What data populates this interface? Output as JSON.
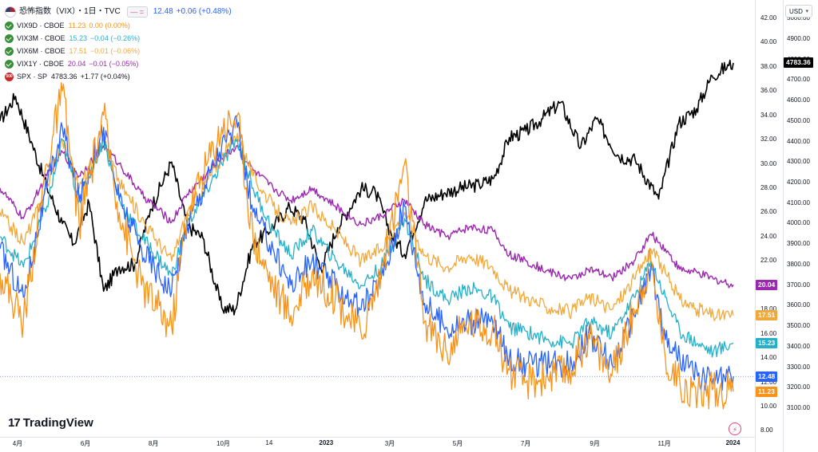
{
  "header": {
    "title": "恐怖指数（VIX）・1日・TVC",
    "main_value": "12.48",
    "main_change": "+0.06 (+0.48%)",
    "main_color": "#2962ff"
  },
  "legend": [
    {
      "name": "VIX9D · CBOE",
      "value": "11.23",
      "change": "0.00 (0.00%)",
      "color": "#f7931a"
    },
    {
      "name": "VIX3M · CBOE",
      "value": "15.23",
      "change": "−0.04 (−0.26%)",
      "color": "#26b0c8"
    },
    {
      "name": "VIX6M · CBOE",
      "value": "17.51",
      "change": "−0.01 (−0.06%)",
      "color": "#f2a93b"
    },
    {
      "name": "VIX1Y · CBOE",
      "value": "20.04",
      "change": "−0.01 (−0.05%)",
      "color": "#9c27b0"
    },
    {
      "name": "SPX · SP",
      "value": "4783.36",
      "change": "+1.77 (+0.04%)",
      "color": "#000000"
    }
  ],
  "currency": "USD",
  "logo_text": "TradingView",
  "spx_icon_text": "500",
  "chart_data": {
    "type": "line",
    "x_labels": [
      "4月",
      "6月",
      "8月",
      "10月",
      "14",
      "2023",
      "3月",
      "5月",
      "7月",
      "9月",
      "11月",
      "2024"
    ],
    "x_range": [
      "2022-03-15",
      "2024-01-02"
    ],
    "left_axis_ticks": [
      8,
      10,
      12,
      14,
      16,
      18,
      20,
      22,
      24,
      26,
      28,
      30,
      32,
      34,
      36,
      38,
      40,
      42
    ],
    "right_axis_ticks": [
      3100,
      3200,
      3300,
      3400,
      3500,
      3600,
      3700,
      3800,
      3900,
      4000,
      4100,
      4200,
      4300,
      4400,
      4500,
      4600,
      4700,
      4800,
      4900,
      5000
    ],
    "ylim_left": [
      7.5,
      43.5
    ],
    "ylim_right": [
      2960,
      5090
    ],
    "tags": [
      {
        "label": "4783.36",
        "bg": "#000000",
        "fg": "#ffffff",
        "axis": "right",
        "value": 4783.36
      },
      {
        "label": "20.04",
        "bg": "#9c27b0",
        "fg": "#ffffff",
        "axis": "left",
        "value": 20.04
      },
      {
        "label": "17.51",
        "bg": "#f2a93b",
        "fg": "#ffffff",
        "axis": "left",
        "value": 17.51
      },
      {
        "label": "15.23",
        "bg": "#26b0c8",
        "fg": "#ffffff",
        "axis": "left",
        "value": 15.23
      },
      {
        "label": "12.48",
        "bg": "#2962ff",
        "fg": "#ffffff",
        "axis": "left",
        "value": 12.48
      },
      {
        "label": "11.23",
        "bg": "#f7931a",
        "fg": "#ffffff",
        "axis": "left",
        "value": 11.23
      }
    ],
    "series": [
      {
        "name": "SPX · SP",
        "axis": "right",
        "color": "#000000",
        "width": 1.6,
        "points": [
          [
            "2022-03-15",
            4500
          ],
          [
            "2022-03-29",
            4620
          ],
          [
            "2022-04-12",
            4400
          ],
          [
            "2022-04-26",
            4180
          ],
          [
            "2022-05-10",
            4000
          ],
          [
            "2022-05-20",
            3900
          ],
          [
            "2022-06-03",
            4100
          ],
          [
            "2022-06-16",
            3670
          ],
          [
            "2022-06-30",
            3790
          ],
          [
            "2022-07-14",
            3800
          ],
          [
            "2022-07-28",
            4070
          ],
          [
            "2022-08-16",
            4300
          ],
          [
            "2022-08-30",
            3990
          ],
          [
            "2022-09-13",
            3930
          ],
          [
            "2022-09-30",
            3590
          ],
          [
            "2022-10-12",
            3580
          ],
          [
            "2022-10-28",
            3900
          ],
          [
            "2022-11-10",
            3960
          ],
          [
            "2022-11-30",
            4080
          ],
          [
            "2022-12-13",
            4020
          ],
          [
            "2022-12-28",
            3780
          ],
          [
            "2023-01-12",
            3980
          ],
          [
            "2023-02-02",
            4170
          ],
          [
            "2023-02-15",
            4150
          ],
          [
            "2023-03-01",
            3950
          ],
          [
            "2023-03-13",
            3850
          ],
          [
            "2023-03-31",
            4110
          ],
          [
            "2023-04-18",
            4150
          ],
          [
            "2023-05-01",
            4170
          ],
          [
            "2023-05-19",
            4190
          ],
          [
            "2023-06-01",
            4220
          ],
          [
            "2023-06-15",
            4420
          ],
          [
            "2023-06-30",
            4450
          ],
          [
            "2023-07-14",
            4510
          ],
          [
            "2023-07-31",
            4590
          ],
          [
            "2023-08-18",
            4370
          ],
          [
            "2023-09-01",
            4510
          ],
          [
            "2023-09-21",
            4330
          ],
          [
            "2023-10-06",
            4310
          ],
          [
            "2023-10-27",
            4120
          ],
          [
            "2023-11-14",
            4490
          ],
          [
            "2023-11-30",
            4560
          ],
          [
            "2023-12-14",
            4720
          ],
          [
            "2023-12-29",
            4770
          ],
          [
            "2024-01-02",
            4783.36
          ]
        ]
      },
      {
        "name": "VIX1Y · CBOE",
        "axis": "left",
        "color": "#9c27b0",
        "width": 1.4,
        "points": [
          [
            "2022-03-15",
            28
          ],
          [
            "2022-04-05",
            25.5
          ],
          [
            "2022-04-26",
            29
          ],
          [
            "2022-05-10",
            31
          ],
          [
            "2022-05-25",
            29
          ],
          [
            "2022-06-16",
            31.5
          ],
          [
            "2022-06-30",
            30
          ],
          [
            "2022-07-20",
            27.5
          ],
          [
            "2022-08-16",
            25.2
          ],
          [
            "2022-08-30",
            27.5
          ],
          [
            "2022-09-30",
            30.5
          ],
          [
            "2022-10-14",
            31.5
          ],
          [
            "2022-10-28",
            29.5
          ],
          [
            "2022-11-15",
            28
          ],
          [
            "2022-12-01",
            27
          ],
          [
            "2022-12-20",
            28
          ],
          [
            "2023-01-10",
            26.5
          ],
          [
            "2023-02-02",
            25
          ],
          [
            "2023-02-20",
            25.7
          ],
          [
            "2023-03-13",
            27
          ],
          [
            "2023-03-31",
            25
          ],
          [
            "2023-04-20",
            24
          ],
          [
            "2023-05-10",
            24.8
          ],
          [
            "2023-05-31",
            24.5
          ],
          [
            "2023-06-15",
            22.5
          ],
          [
            "2023-06-30",
            22
          ],
          [
            "2023-07-18",
            21.2
          ],
          [
            "2023-08-10",
            20.5
          ],
          [
            "2023-08-25",
            21.3
          ],
          [
            "2023-09-15",
            20.6
          ],
          [
            "2023-10-05",
            22
          ],
          [
            "2023-10-20",
            24.2
          ],
          [
            "2023-11-02",
            23
          ],
          [
            "2023-11-15",
            21.3
          ],
          [
            "2023-12-01",
            21
          ],
          [
            "2023-12-15",
            20.5
          ],
          [
            "2024-01-02",
            20.04
          ]
        ]
      },
      {
        "name": "VIX6M · CBOE",
        "axis": "left",
        "color": "#f2a93b",
        "width": 1.3,
        "points": [
          [
            "2022-03-15",
            26
          ],
          [
            "2022-04-05",
            23.5
          ],
          [
            "2022-04-26",
            28
          ],
          [
            "2022-05-10",
            32
          ],
          [
            "2022-05-25",
            28
          ],
          [
            "2022-06-16",
            32
          ],
          [
            "2022-06-30",
            28.5
          ],
          [
            "2022-07-20",
            25.5
          ],
          [
            "2022-08-16",
            22
          ],
          [
            "2022-08-30",
            26
          ],
          [
            "2022-09-30",
            30.5
          ],
          [
            "2022-10-14",
            32.5
          ],
          [
            "2022-10-28",
            29
          ],
          [
            "2022-11-15",
            26.5
          ],
          [
            "2022-12-01",
            25
          ],
          [
            "2022-12-20",
            26.5
          ],
          [
            "2023-01-10",
            24.5
          ],
          [
            "2023-02-02",
            22
          ],
          [
            "2023-02-20",
            23
          ],
          [
            "2023-03-13",
            26
          ],
          [
            "2023-03-31",
            22.5
          ],
          [
            "2023-04-20",
            21.5
          ],
          [
            "2023-05-10",
            22.5
          ],
          [
            "2023-05-31",
            21.5
          ],
          [
            "2023-06-15",
            19.5
          ],
          [
            "2023-06-30",
            19
          ],
          [
            "2023-07-18",
            18.2
          ],
          [
            "2023-08-10",
            17.8
          ],
          [
            "2023-08-25",
            19
          ],
          [
            "2023-09-15",
            18
          ],
          [
            "2023-10-05",
            20.5
          ],
          [
            "2023-10-20",
            23
          ],
          [
            "2023-11-02",
            21
          ],
          [
            "2023-11-15",
            18.8
          ],
          [
            "2023-12-01",
            18
          ],
          [
            "2023-12-15",
            17.5
          ],
          [
            "2024-01-02",
            17.51
          ]
        ]
      },
      {
        "name": "VIX3M · CBOE",
        "axis": "left",
        "color": "#26b0c8",
        "width": 1.3,
        "points": [
          [
            "2022-03-15",
            24
          ],
          [
            "2022-04-05",
            21.5
          ],
          [
            "2022-04-26",
            26.5
          ],
          [
            "2022-05-10",
            32
          ],
          [
            "2022-05-25",
            27
          ],
          [
            "2022-06-16",
            32
          ],
          [
            "2022-06-30",
            27
          ],
          [
            "2022-07-20",
            24
          ],
          [
            "2022-08-16",
            20.8
          ],
          [
            "2022-08-30",
            25
          ],
          [
            "2022-09-30",
            30
          ],
          [
            "2022-10-14",
            32
          ],
          [
            "2022-10-28",
            28
          ],
          [
            "2022-11-15",
            24.5
          ],
          [
            "2022-12-01",
            22.5
          ],
          [
            "2022-12-20",
            24.5
          ],
          [
            "2023-01-10",
            22
          ],
          [
            "2023-02-02",
            20
          ],
          [
            "2023-02-20",
            21.5
          ],
          [
            "2023-03-13",
            25.5
          ],
          [
            "2023-03-31",
            20.5
          ],
          [
            "2023-04-20",
            18.8
          ],
          [
            "2023-05-10",
            19.8
          ],
          [
            "2023-05-31",
            19
          ],
          [
            "2023-06-15",
            16.5
          ],
          [
            "2023-06-30",
            16.2
          ],
          [
            "2023-07-18",
            15.5
          ],
          [
            "2023-08-10",
            15.2
          ],
          [
            "2023-08-25",
            17
          ],
          [
            "2023-09-15",
            16
          ],
          [
            "2023-10-05",
            19
          ],
          [
            "2023-10-20",
            22
          ],
          [
            "2023-11-02",
            19
          ],
          [
            "2023-11-15",
            16.2
          ],
          [
            "2023-12-01",
            15.2
          ],
          [
            "2023-12-15",
            14.5
          ],
          [
            "2024-01-02",
            15.23
          ]
        ]
      },
      {
        "name": "VIX",
        "axis": "left",
        "color": "#2962ff",
        "width": 1.3,
        "points": [
          [
            "2022-03-15",
            23
          ],
          [
            "2022-04-05",
            19
          ],
          [
            "2022-04-26",
            28
          ],
          [
            "2022-05-10",
            33
          ],
          [
            "2022-05-25",
            27
          ],
          [
            "2022-06-16",
            33
          ],
          [
            "2022-06-30",
            27
          ],
          [
            "2022-07-20",
            23
          ],
          [
            "2022-08-16",
            19.5
          ],
          [
            "2022-08-30",
            25
          ],
          [
            "2022-09-30",
            31.5
          ],
          [
            "2022-10-14",
            33
          ],
          [
            "2022-10-28",
            26
          ],
          [
            "2022-11-15",
            23
          ],
          [
            "2022-12-01",
            20
          ],
          [
            "2022-12-20",
            22
          ],
          [
            "2023-01-10",
            20
          ],
          [
            "2023-02-02",
            18
          ],
          [
            "2023-02-20",
            20.5
          ],
          [
            "2023-03-13",
            26.5
          ],
          [
            "2023-03-31",
            18.5
          ],
          [
            "2023-04-20",
            16.5
          ],
          [
            "2023-05-10",
            17
          ],
          [
            "2023-05-31",
            17
          ],
          [
            "2023-06-15",
            14
          ],
          [
            "2023-06-30",
            13.5
          ],
          [
            "2023-07-18",
            13.5
          ],
          [
            "2023-08-10",
            13.5
          ],
          [
            "2023-08-25",
            16
          ],
          [
            "2023-09-15",
            13.5
          ],
          [
            "2023-10-05",
            17.5
          ],
          [
            "2023-10-20",
            21.5
          ],
          [
            "2023-11-02",
            15.5
          ],
          [
            "2023-11-15",
            14
          ],
          [
            "2023-12-01",
            12.5
          ],
          [
            "2023-12-15",
            12.3
          ],
          [
            "2024-01-02",
            12.48
          ]
        ]
      },
      {
        "name": "VIX9D · CBOE",
        "axis": "left",
        "color": "#f7931a",
        "width": 1.3,
        "points": [
          [
            "2022-03-15",
            21
          ],
          [
            "2022-04-05",
            17
          ],
          [
            "2022-04-26",
            30
          ],
          [
            "2022-05-10",
            36
          ],
          [
            "2022-05-25",
            25
          ],
          [
            "2022-06-16",
            34
          ],
          [
            "2022-06-30",
            26
          ],
          [
            "2022-07-20",
            20
          ],
          [
            "2022-08-16",
            16.5
          ],
          [
            "2022-08-30",
            26
          ],
          [
            "2022-09-30",
            33
          ],
          [
            "2022-10-14",
            34
          ],
          [
            "2022-10-28",
            24
          ],
          [
            "2022-11-15",
            20
          ],
          [
            "2022-12-01",
            17.5
          ],
          [
            "2022-12-20",
            21
          ],
          [
            "2023-01-10",
            19
          ],
          [
            "2023-02-02",
            16
          ],
          [
            "2023-02-20",
            21
          ],
          [
            "2023-03-13",
            30
          ],
          [
            "2023-03-31",
            17
          ],
          [
            "2023-04-20",
            14.5
          ],
          [
            "2023-05-10",
            17
          ],
          [
            "2023-05-31",
            16.5
          ],
          [
            "2023-06-15",
            13
          ],
          [
            "2023-06-30",
            12
          ],
          [
            "2023-07-18",
            12.5
          ],
          [
            "2023-08-10",
            13
          ],
          [
            "2023-08-25",
            16
          ],
          [
            "2023-09-15",
            12.5
          ],
          [
            "2023-10-05",
            18
          ],
          [
            "2023-10-20",
            22
          ],
          [
            "2023-11-02",
            14
          ],
          [
            "2023-11-15",
            12
          ],
          [
            "2023-12-01",
            11
          ],
          [
            "2023-12-15",
            11.5
          ],
          [
            "2024-01-02",
            11.23
          ]
        ]
      }
    ]
  }
}
